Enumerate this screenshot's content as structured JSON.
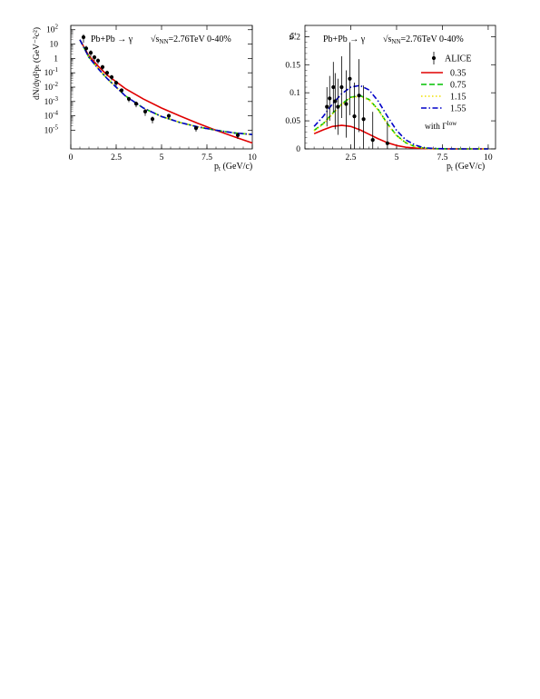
{
  "chart_data": [
    {
      "type": "line",
      "title_left": "Pb+Pb → γ",
      "title_right": "√s",
      "title_right_sub": "NN",
      "title_right_tail": "=2.76TeV  0-40%",
      "xlabel": "p",
      "xlabel_sub": "t",
      "xlabel_unit": " (GeV/c)",
      "ylabel": "dN/dyd²pₜ (GeV⁻²c²)",
      "xlim": [
        0,
        10
      ],
      "ylog": true,
      "ylim_exp": [
        -6.3,
        2.3
      ],
      "x_ticks": [
        0,
        2.5,
        5,
        7.5,
        10
      ],
      "x_tick_labels": [
        "0",
        "2.5",
        "5",
        "7.5",
        "10"
      ],
      "y_ticks": [
        {
          "base": "10",
          "exp": "2",
          "value": 100
        },
        {
          "base": "10",
          "exp": "",
          "value": 10
        },
        {
          "base": "1",
          "exp": "",
          "value": 1
        },
        {
          "base": "10",
          "exp": "-1",
          "value": 0.1
        },
        {
          "base": "10",
          "exp": "-2",
          "value": 0.01
        },
        {
          "base": "10",
          "exp": "-3",
          "value": 0.001
        },
        {
          "base": "10",
          "exp": "-4",
          "value": 0.0001
        },
        {
          "base": "10",
          "exp": "-5",
          "value": 1e-05
        }
      ],
      "series": [
        {
          "name": "0.35",
          "color": "#e00000",
          "dash": "solid",
          "x": [
            0.5,
            1,
            1.5,
            2,
            3,
            4,
            5,
            6,
            7,
            8,
            9,
            10
          ],
          "y": [
            20,
            1.5,
            0.3,
            0.07,
            0.008,
            0.0015,
            0.00035,
            0.0001,
            3e-05,
            1e-05,
            3.5e-06,
            1.3e-06
          ]
        },
        {
          "name": "0.75",
          "color": "#00c000",
          "dash": "dashed",
          "x": [
            0.5,
            1,
            1.5,
            2,
            3,
            4,
            5,
            6,
            7,
            8,
            9,
            10
          ],
          "y": [
            20,
            1.2,
            0.2,
            0.04,
            0.0025,
            0.00035,
            9e-05,
            3.5e-05,
            1.7e-05,
            1e-05,
            6.5e-06,
            5e-06
          ]
        },
        {
          "name": "1.15",
          "color": "#f0e000",
          "dash": "dotted",
          "x": [
            0.5,
            1,
            1.5,
            2,
            3,
            4,
            5,
            6,
            7,
            8,
            9,
            10
          ],
          "y": [
            20,
            1.2,
            0.2,
            0.04,
            0.0025,
            0.00035,
            9e-05,
            3.5e-05,
            1.7e-05,
            1e-05,
            6.5e-06,
            5e-06
          ]
        },
        {
          "name": "1.55",
          "color": "#0000c8",
          "dash": "dashdot",
          "x": [
            0.5,
            1,
            1.5,
            2,
            3,
            4,
            5,
            6,
            7,
            8,
            9,
            10
          ],
          "y": [
            20,
            1.2,
            0.2,
            0.04,
            0.0025,
            0.00035,
            9e-05,
            3.5e-05,
            1.7e-05,
            1e-05,
            6.5e-06,
            5e-06
          ]
        }
      ],
      "points": {
        "name": "ALICE",
        "x": [
          0.7,
          0.85,
          1.1,
          1.3,
          1.5,
          1.75,
          2.0,
          2.25,
          2.5,
          2.8,
          3.2,
          3.6,
          4.1,
          4.5,
          5.4,
          6.9,
          9.2
        ],
        "y": [
          30,
          5,
          2.5,
          1.2,
          0.7,
          0.25,
          0.1,
          0.05,
          0.02,
          0.006,
          0.0015,
          0.0007,
          0.0002,
          6e-05,
          0.0001,
          1.4e-05,
          4.5e-06
        ],
        "err": [
          18,
          2.5,
          1.2,
          0.5,
          0.3,
          0.1,
          0.04,
          0.02,
          0.008,
          0.002,
          0.0006,
          0.0003,
          0.0001,
          3e-05,
          4e-05,
          6e-06,
          2e-06
        ]
      }
    },
    {
      "type": "line",
      "title_left": "Pb+Pb → γ",
      "title_right": "√s",
      "title_right_sub": "NN",
      "title_right_tail": "=2.76TeV  0-40%",
      "xlabel": "p",
      "xlabel_sub": "t",
      "xlabel_unit": " (GeV/c)",
      "ylabel": "v",
      "ylabel_sub": "2",
      "xlim": [
        0,
        10.4
      ],
      "ylim": [
        0,
        0.22
      ],
      "x_ticks": [
        2.5,
        5,
        7.5,
        10
      ],
      "x_tick_labels": [
        "2.5",
        "5",
        "7.5",
        "10"
      ],
      "y_ticks": [
        0,
        0.05,
        0.1,
        0.15,
        0.2
      ],
      "y_tick_labels": [
        "0",
        "0.05",
        "0.1",
        "0.15",
        "0.2"
      ],
      "legend": {
        "data_label": "ALICE",
        "footer": "with Γ",
        "footer_sup": "low"
      },
      "series": [
        {
          "name": "0.35",
          "color": "#e00000",
          "dash": "solid",
          "x": [
            0.5,
            1,
            1.5,
            2,
            2.5,
            3,
            3.5,
            4,
            4.5,
            5,
            5.5,
            6,
            6.5,
            7,
            8,
            9,
            10
          ],
          "y": [
            0.027,
            0.034,
            0.04,
            0.042,
            0.04,
            0.034,
            0.026,
            0.018,
            0.011,
            0.006,
            0.003,
            0.0015,
            0.0006,
            0.0002,
            0,
            0,
            0
          ]
        },
        {
          "name": "0.75",
          "color": "#00c000",
          "dash": "dashed",
          "x": [
            0.5,
            1,
            1.5,
            2,
            2.5,
            3,
            3.5,
            4,
            4.5,
            5,
            5.5,
            6,
            6.5,
            7,
            8,
            9,
            10
          ],
          "y": [
            0.033,
            0.045,
            0.063,
            0.08,
            0.092,
            0.095,
            0.088,
            0.07,
            0.045,
            0.024,
            0.011,
            0.004,
            0.0015,
            0.0005,
            0,
            0,
            0
          ]
        },
        {
          "name": "1.15",
          "color": "#f0e000",
          "dash": "dotted",
          "x": [
            0.5,
            1,
            1.5,
            2,
            2.5,
            3,
            3.5,
            4,
            4.5,
            5,
            5.5,
            6,
            6.5,
            7,
            8,
            9,
            10
          ],
          "y": [
            0.032,
            0.044,
            0.062,
            0.079,
            0.091,
            0.094,
            0.087,
            0.069,
            0.044,
            0.023,
            0.011,
            0.004,
            0.0015,
            0.0005,
            0,
            0,
            0
          ]
        },
        {
          "name": "1.55",
          "color": "#0000c8",
          "dash": "dashdot",
          "x": [
            0.5,
            1,
            1.5,
            2,
            2.5,
            3,
            3.5,
            4,
            4.5,
            5,
            5.5,
            6,
            6.5,
            7,
            8,
            9,
            10
          ],
          "y": [
            0.04,
            0.058,
            0.08,
            0.098,
            0.11,
            0.113,
            0.105,
            0.085,
            0.058,
            0.033,
            0.016,
            0.007,
            0.002,
            0.0008,
            0,
            0,
            0
          ]
        }
      ],
      "points": {
        "name": "ALICE",
        "x": [
          1.2,
          1.35,
          1.55,
          1.65,
          1.8,
          2.0,
          2.25,
          2.45,
          2.7,
          2.95,
          3.2,
          3.7,
          4.5
        ],
        "y": [
          0.075,
          0.09,
          0.11,
          0.085,
          0.075,
          0.11,
          0.08,
          0.125,
          0.058,
          0.095,
          0.053,
          0.016,
          0.01
        ],
        "err": [
          0.035,
          0.04,
          0.045,
          0.05,
          0.05,
          0.055,
          0.06,
          0.065,
          0.06,
          0.065,
          0.06,
          0.05,
          0.04
        ]
      }
    }
  ]
}
